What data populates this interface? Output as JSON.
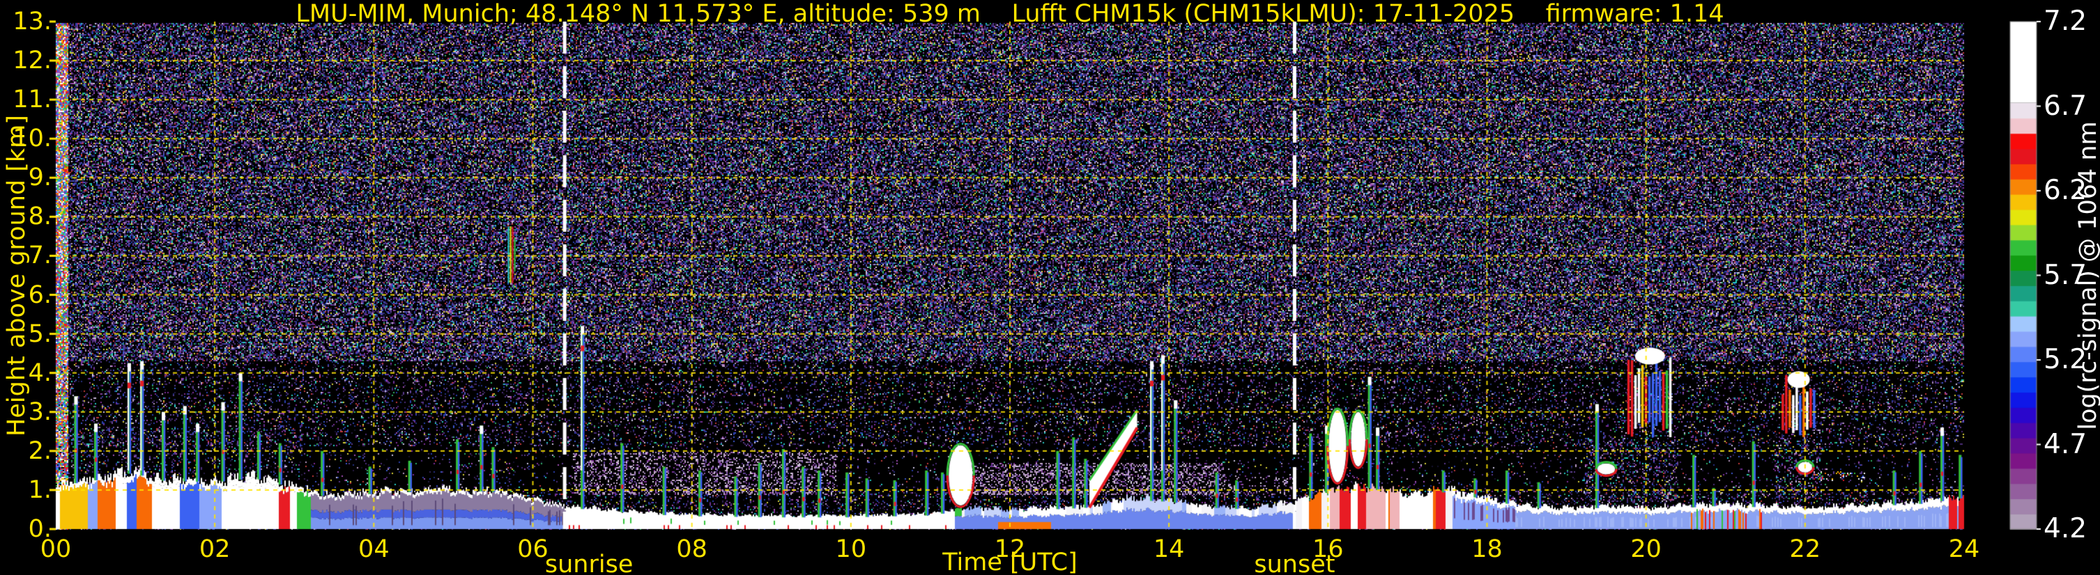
{
  "chart_data": {
    "type": "heatmap",
    "title": "LMU-MIM, Munich; 48.148° N 11.573° E, altitude: 539 m    Lufft CHM15k (CHM15kLMU): 17-11-2025    firmware: 1.14",
    "xlabel": "Time [UTC]",
    "ylabel": "Height above ground [km]",
    "xlim": [
      0,
      24
    ],
    "ylim": [
      0,
      13
    ],
    "accent_color": "#ffe400",
    "grid": {
      "x_step_hours": 2,
      "y_step_km": 1,
      "color": "#ffe400",
      "style": "dashed"
    },
    "x_ticks": {
      "values": [
        0,
        2,
        4,
        6,
        8,
        10,
        12,
        14,
        16,
        18,
        20,
        22,
        24
      ],
      "labels": [
        "00",
        "02",
        "04",
        "06",
        "08",
        "10",
        "12",
        "14",
        "16",
        "18",
        "20",
        "22",
        "24"
      ]
    },
    "y_ticks": {
      "values": [
        13,
        12,
        11,
        10,
        9,
        8,
        7,
        6,
        5,
        4,
        3,
        2,
        1,
        0
      ],
      "labels": [
        "13.",
        "12.",
        "11.",
        "10.",
        "9.",
        "8.",
        "7.",
        "6.",
        "5.",
        "4.",
        "3.",
        "2.",
        "1.",
        "0."
      ]
    },
    "sun_events": {
      "sunrise_utc": 6.4,
      "sunrise_label": "sunrise",
      "sunset_utc": 15.58,
      "sunset_label": "sunset",
      "line_color": "#ffffff"
    },
    "colorbar": {
      "label": "log(rc-signal) @ 1064 nm",
      "vmin": 4.2,
      "vmax": 7.2,
      "tick_values": [
        7.2,
        6.7,
        6.2,
        5.7,
        5.2,
        4.7,
        4.2
      ],
      "tick_labels": [
        "7.2",
        "6.7",
        "6.2",
        "5.7",
        "5.2",
        "4.7",
        "4.2"
      ],
      "white_top_from": 6.72,
      "segment_colors_bottom_to_top": [
        "#b2a2ba",
        "#a284ac",
        "#935f9e",
        "#8a3d92",
        "#7d1486",
        "#650e96",
        "#4a07ae",
        "#2a06cc",
        "#0f17e8",
        "#0a3af4",
        "#2e61f8",
        "#5c82fa",
        "#8aa5fb",
        "#a2c8fd",
        "#36caa4",
        "#1aa184",
        "#12904c",
        "#119c12",
        "#33c03a",
        "#97dc2e",
        "#e4e60c",
        "#f8c206",
        "#f88606",
        "#f84406",
        "#e6141e",
        "#fa0a0a",
        "#f2c6ce",
        "#ece2ec"
      ]
    },
    "noise": {
      "bands": [
        {
          "k0": 4.3,
          "k1": 13.0,
          "d": 0.52
        },
        {
          "k0": 2.15,
          "k1": 4.3,
          "d": 0.17
        },
        {
          "k0": 1.0,
          "k1": 2.15,
          "d": 0.06
        },
        {
          "k0": 0.0,
          "k1": 1.0,
          "d": 0.18
        }
      ],
      "patches": [
        {
          "t0": 0.0,
          "t1": 0.15,
          "k0": 0,
          "k1": 13,
          "d": 0.8,
          "mode": "bright"
        },
        {
          "t0": 0.1,
          "t1": 3.1,
          "k0": 1.4,
          "k1": 2.6,
          "d": 0.1
        },
        {
          "t0": 6.5,
          "t1": 9.8,
          "k0": 0.9,
          "k1": 2.0,
          "d": 0.24,
          "mode": "light"
        },
        {
          "t0": 11.3,
          "t1": 14.7,
          "k0": 0.9,
          "k1": 1.7,
          "d": 0.3,
          "mode": "light"
        },
        {
          "t0": 14.7,
          "t1": 15.6,
          "k0": 0.9,
          "k1": 1.4,
          "d": 0.13,
          "mode": "light"
        },
        {
          "t0": 19.2,
          "t1": 20.4,
          "k0": 0.7,
          "k1": 2.3,
          "d": 0.2
        },
        {
          "t0": 21.6,
          "t1": 22.2,
          "k0": 0.8,
          "k1": 2.3,
          "d": 0.2
        },
        {
          "t0": 22.1,
          "t1": 22.75,
          "k0": 1.25,
          "k1": 1.5,
          "d": 0.16,
          "mode": "bright"
        }
      ],
      "palettes": {
        "normal": [
          "#4b2d78",
          "#5a3a8f",
          "#39245c",
          "#6b4aa0",
          "#5a3a8f",
          "#4b2d78",
          "#2a3fae",
          "#3d56cc",
          "#242f82",
          "#2a3fae",
          "#a04fb4",
          "#7e2d9a",
          "#16102e",
          "#241a40",
          "#b89ac4",
          "#2fae66",
          "#27c8c4",
          "#cfc6e6",
          "#c23a3a",
          "#d8d23a"
        ],
        "light": [
          "#b89ac4",
          "#c8aed0",
          "#a68bbf",
          "#8f5aa8",
          "#7e2d9a",
          "#5a3a8f",
          "#b89ac4",
          "#c8aed0",
          "#e0d8ec",
          "#6b4aa0"
        ],
        "bright": [
          "#ffffff",
          "#e81c24",
          "#34c23c",
          "#3b62f2",
          "#f8c206",
          "#27c8c4",
          "#a04fb4",
          "#f86a06",
          "#cfc6e6",
          "#5a3a8f"
        ]
      }
    },
    "boundary_layer": {
      "top_km": [
        [
          0,
          1.15
        ],
        [
          0.5,
          1.3
        ],
        [
          1,
          1.5
        ],
        [
          1.2,
          1.3
        ],
        [
          2,
          1.25
        ],
        [
          2.5,
          1.35
        ],
        [
          3,
          1.1
        ],
        [
          3.3,
          0.9
        ],
        [
          4,
          0.95
        ],
        [
          4.5,
          1.0
        ],
        [
          5,
          1.05
        ],
        [
          5.5,
          1.0
        ],
        [
          6,
          0.75
        ],
        [
          6.4,
          0.6
        ],
        [
          7,
          0.5
        ],
        [
          7.5,
          0.42
        ],
        [
          8,
          0.38
        ],
        [
          9,
          0.35
        ],
        [
          10,
          0.35
        ],
        [
          11,
          0.4
        ],
        [
          11.5,
          0.55
        ],
        [
          12,
          0.5
        ],
        [
          12.5,
          0.55
        ],
        [
          13,
          0.6
        ],
        [
          13.5,
          0.8
        ],
        [
          14,
          0.75
        ],
        [
          14.5,
          0.6
        ],
        [
          15,
          0.55
        ],
        [
          15.6,
          0.7
        ],
        [
          16,
          1.0
        ],
        [
          16.5,
          1.1
        ],
        [
          17,
          0.9
        ],
        [
          17.5,
          1.0
        ],
        [
          18,
          0.8
        ],
        [
          18.5,
          0.6
        ],
        [
          19,
          0.55
        ],
        [
          19.5,
          0.6
        ],
        [
          20,
          0.55
        ],
        [
          20.5,
          0.6
        ],
        [
          21,
          0.65
        ],
        [
          21.5,
          0.6
        ],
        [
          22,
          0.55
        ],
        [
          22.5,
          0.6
        ],
        [
          23,
          0.65
        ],
        [
          23.5,
          0.7
        ],
        [
          24,
          0.85
        ]
      ],
      "styles": [
        {
          "t0": 0.0,
          "t1": 3.2,
          "style": "streaks"
        },
        {
          "t0": 3.2,
          "t1": 6.4,
          "style": "smooth"
        },
        {
          "t0": 6.4,
          "t1": 11.3,
          "style": "shallow"
        },
        {
          "t0": 11.3,
          "t1": 15.6,
          "style": "mixed"
        },
        {
          "t0": 15.6,
          "t1": 17.55,
          "style": "active"
        },
        {
          "t0": 17.55,
          "t1": 18.35,
          "style": "capped"
        },
        {
          "t0": 18.35,
          "t1": 24.0,
          "style": "bumpy"
        }
      ]
    },
    "features": {
      "spikes": [
        [
          0.25,
          3.4
        ],
        [
          0.5,
          2.7
        ],
        [
          0.92,
          4.25
        ],
        [
          1.08,
          4.3
        ],
        [
          1.35,
          3.0
        ],
        [
          1.62,
          3.15
        ],
        [
          1.78,
          2.7
        ],
        [
          2.1,
          3.25
        ],
        [
          2.32,
          4.0
        ],
        [
          2.55,
          2.5
        ],
        [
          2.82,
          2.2
        ],
        [
          3.35,
          2.0
        ],
        [
          3.95,
          1.6
        ],
        [
          4.45,
          1.75
        ],
        [
          5.05,
          2.3
        ],
        [
          5.35,
          2.65
        ],
        [
          5.5,
          2.1
        ],
        [
          6.62,
          5.2
        ],
        [
          7.12,
          2.2
        ],
        [
          7.65,
          1.6
        ],
        [
          8.1,
          1.5
        ],
        [
          8.55,
          1.35
        ],
        [
          8.85,
          1.7
        ],
        [
          9.15,
          2.05
        ],
        [
          9.4,
          1.6
        ],
        [
          9.6,
          1.5
        ],
        [
          9.95,
          1.45
        ],
        [
          10.2,
          1.3
        ],
        [
          10.55,
          1.25
        ],
        [
          10.95,
          1.5
        ],
        [
          11.15,
          1.45
        ],
        [
          12.6,
          2.0
        ],
        [
          12.8,
          2.35
        ],
        [
          12.95,
          1.8
        ],
        [
          13.78,
          4.3
        ],
        [
          13.92,
          4.45
        ],
        [
          14.08,
          3.3
        ],
        [
          14.6,
          1.45
        ],
        [
          14.85,
          1.25
        ],
        [
          15.78,
          2.45
        ],
        [
          15.98,
          2.65
        ],
        [
          16.52,
          3.9
        ],
        [
          16.62,
          2.6
        ],
        [
          17.45,
          1.5
        ],
        [
          17.85,
          1.3
        ],
        [
          18.25,
          1.5
        ],
        [
          18.65,
          1.2
        ],
        [
          19.38,
          3.2
        ],
        [
          20.6,
          1.9
        ],
        [
          20.85,
          1.05
        ],
        [
          21.35,
          2.25
        ],
        [
          23.12,
          1.5
        ],
        [
          23.45,
          2.0
        ],
        [
          23.72,
          2.6
        ],
        [
          23.95,
          1.9
        ]
      ],
      "clouds": [
        {
          "t": 11.38,
          "k0": 0.6,
          "k1": 2.15,
          "w": 0.3
        },
        {
          "t": 16.12,
          "k0": 1.2,
          "k1": 3.05,
          "w": 0.22
        },
        {
          "t": 16.38,
          "k0": 1.6,
          "k1": 3.0,
          "w": 0.18
        },
        {
          "t": 19.5,
          "k0": 1.4,
          "k1": 1.68,
          "w": 0.22
        },
        {
          "t": 22.0,
          "k0": 1.45,
          "k1": 1.72,
          "w": 0.18
        }
      ],
      "towers": [
        {
          "t0": 19.78,
          "t1": 20.32,
          "k0": 2.35,
          "k1": 4.55
        },
        {
          "t0": 21.72,
          "t1": 22.12,
          "k0": 2.2,
          "k1": 3.95
        }
      ],
      "bands": [
        {
          "t0": 13.0,
          "t1": 13.6,
          "k0a": 0.55,
          "k1a": 1.25,
          "k0b": 2.6,
          "k1b": 3.05
        }
      ],
      "high_streaks": [
        {
          "t": 5.72,
          "k0": 6.3,
          "k1": 7.75
        }
      ]
    }
  }
}
